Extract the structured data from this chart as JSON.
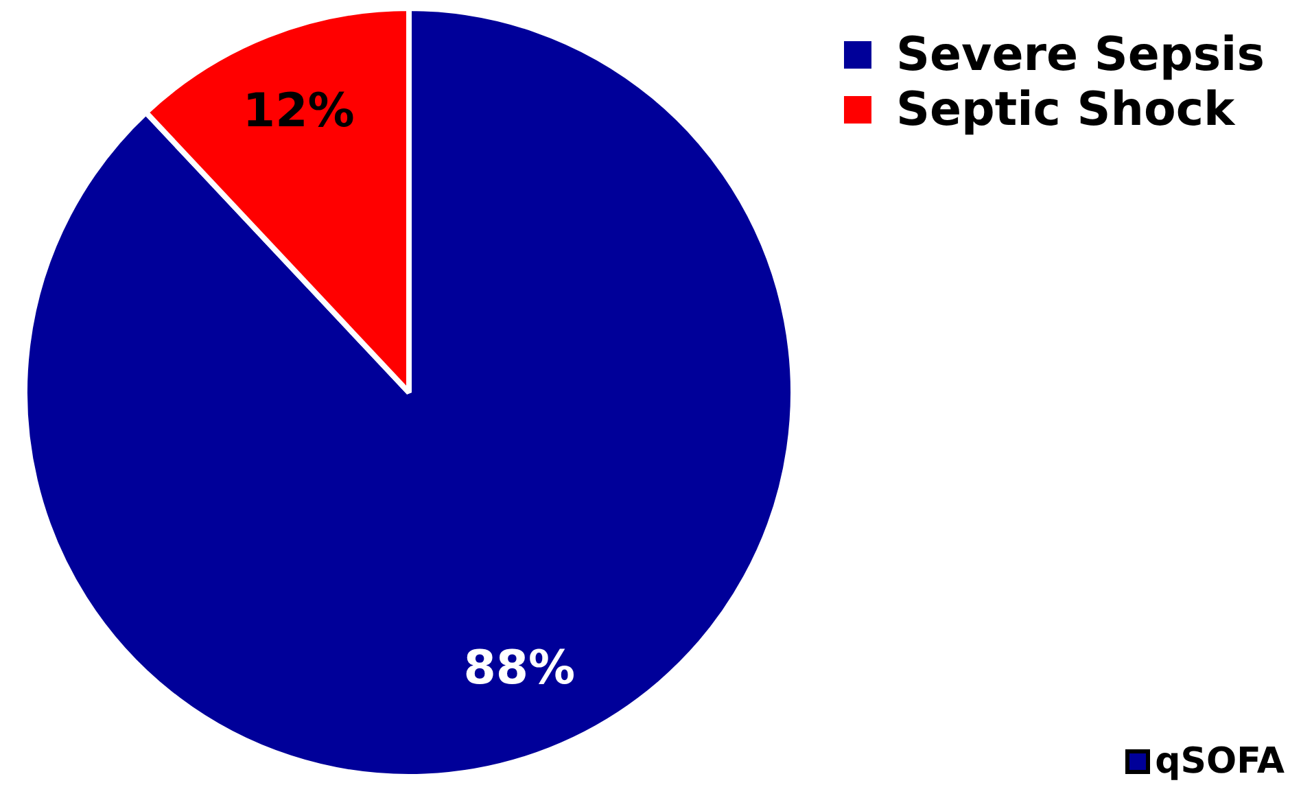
{
  "chart_data": {
    "type": "pie",
    "categories": [
      "Severe Sepsis",
      "Septic Shock"
    ],
    "values": [
      88,
      12
    ],
    "colors": [
      "#000099",
      "#ff0000"
    ],
    "value_labels": [
      "88%",
      "12%"
    ],
    "legend": "top right",
    "annotations": [
      "qSOFA"
    ]
  }
}
